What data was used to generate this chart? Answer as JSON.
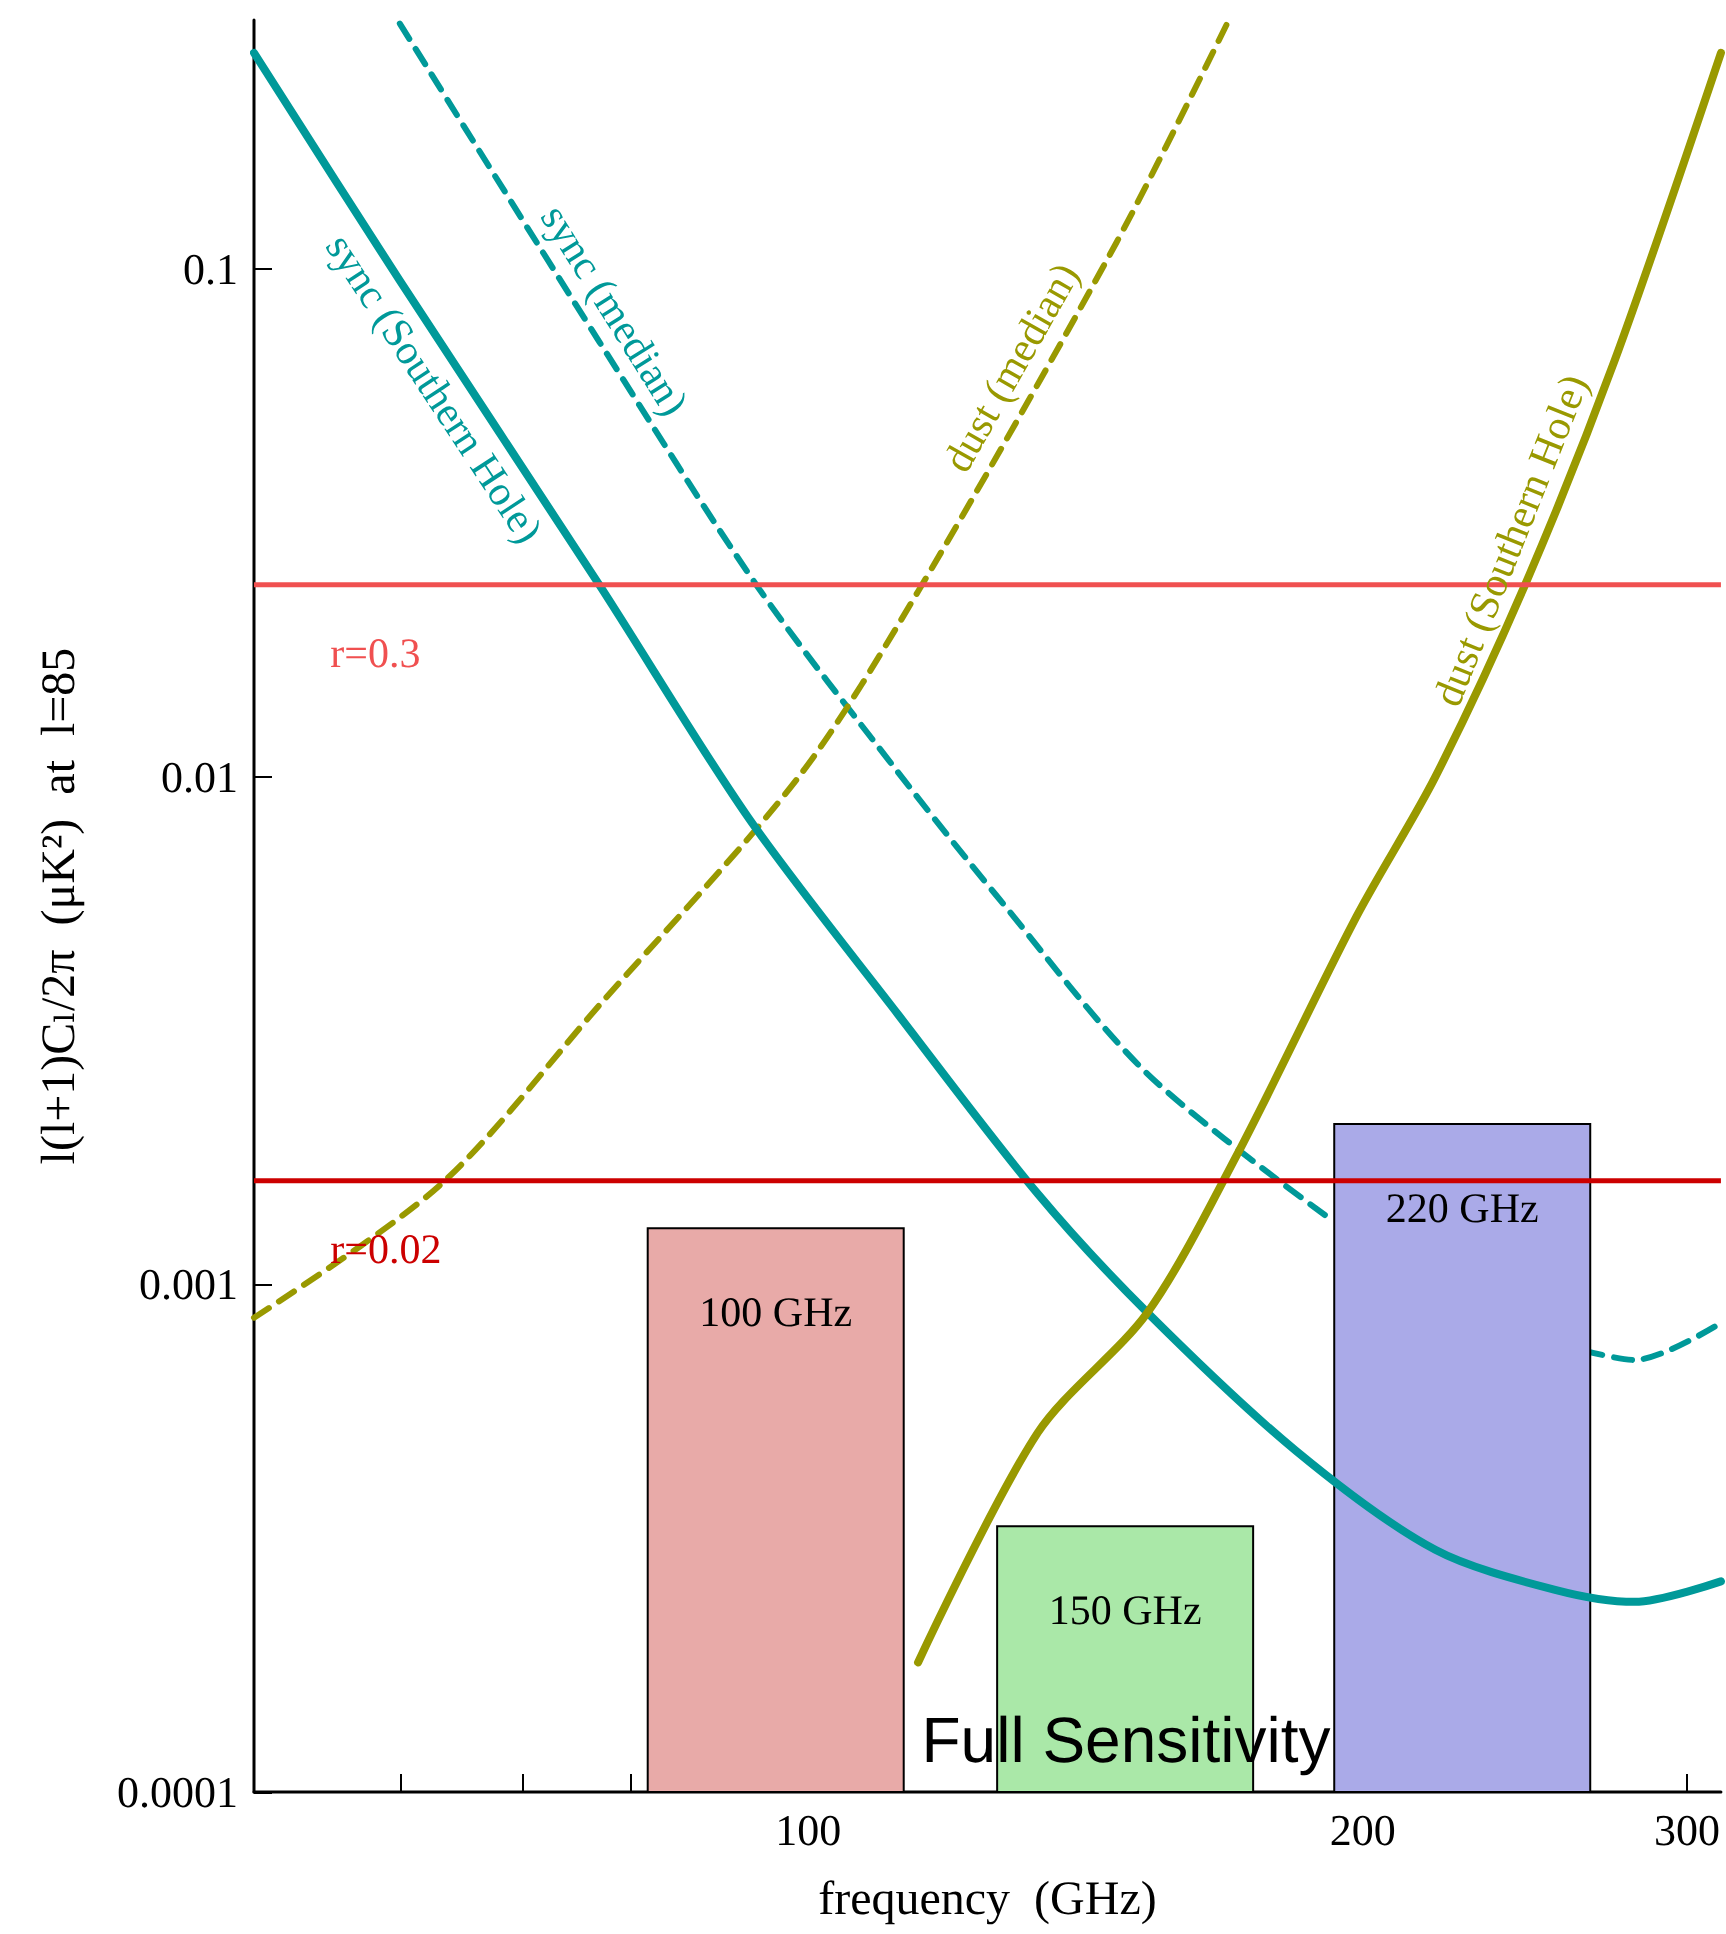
{
  "chart_data": {
    "type": "line",
    "xlabel": "frequency  (GHz)",
    "ylabel": "l(l+1)Cₗ/2π  (μK²)  at  l=85",
    "log": "xy",
    "grid": false,
    "legend": false,
    "xlim": [
      50,
      313
    ],
    "xticks": [
      {
        "value": 60,
        "label": null
      },
      {
        "value": 70,
        "label": null
      },
      {
        "value": 80,
        "label": null
      },
      {
        "value": 90,
        "label": null
      },
      100,
      200,
      300
    ],
    "ylim": [
      0.0001,
      0.31
    ],
    "yticks": [
      0.0001,
      0.001,
      0.01,
      0.1
    ],
    "series": [
      {
        "name": "sync (Southern Hole)",
        "color": "#009999",
        "line_style": "solid",
        "x": [
          50,
          60,
          77,
          92.8,
          111.9,
          133.2,
          152.8,
          184,
          219,
          254.7,
          281,
          313
        ],
        "values": [
          0.267,
          0.095,
          0.0239,
          0.0083,
          0.0034,
          0.00151,
          0.00088,
          0.00047,
          0.0003,
          0.00025,
          0.000237,
          0.00026
        ]
      },
      {
        "name": "sync (median)",
        "color": "#009999",
        "line_style": "dashed",
        "x": [
          60,
          77,
          94,
          111.9,
          126.7,
          152.8,
          191.3,
          226,
          264,
          281,
          313
        ],
        "values": [
          0.305,
          0.072,
          0.0235,
          0.0102,
          0.0058,
          0.0026,
          0.00136,
          null,
          0.00074,
          0.00071,
          0.00084
        ]
      },
      {
        "name": "dust (median)",
        "color": "#999900",
        "line_style": "dashed",
        "x": [
          50,
          63.1,
          77,
          98.8,
          114.7,
          147,
          168.8
        ],
        "values": [
          0.00086,
          0.00157,
          0.00355,
          0.01,
          0.0232,
          0.113,
          0.305
        ]
      },
      {
        "name": "dust (Southern Hole)",
        "color": "#999900",
        "line_style": "solid",
        "x": [
          114.7,
          133.2,
          152.8,
          170.9,
          198.4,
          219,
          245,
          274,
          313
        ],
        "values": [
          0.00018,
          0.00051,
          0.00088,
          0.0018,
          0.0053,
          0.01,
          0.0239,
          0.066,
          0.267
        ]
      },
      {
        "type": "bar",
        "x": [
          96,
          148.6,
          226.5
        ],
        "values": [
          0.00129,
          0.000334,
          0.00207
        ],
        "colors": [
          "#e8aaa8",
          "#aae8a8",
          "#aaaae8"
        ]
      }
    ],
    "ref_lines": [
      {
        "axis": "y",
        "value": 0.0239,
        "color": "#f05050"
      },
      {
        "axis": "y",
        "value": 0.0016,
        "color": "#cc0000"
      }
    ],
    "annotations": [
      {
        "text": "r=0.3",
        "x": 55,
        "y": 0.0239
      },
      {
        "text": "r=0.02",
        "x": 55,
        "y": 0.0016
      },
      {
        "text": "100 GHz",
        "x": 96,
        "y": 0.00129
      },
      {
        "text": "150 GHz",
        "x": 148.6,
        "y": 0.000334
      },
      {
        "text": "220 GHz",
        "x": 226.5,
        "y": 0.00207
      },
      "Full Sensitivity"
    ]
  }
}
